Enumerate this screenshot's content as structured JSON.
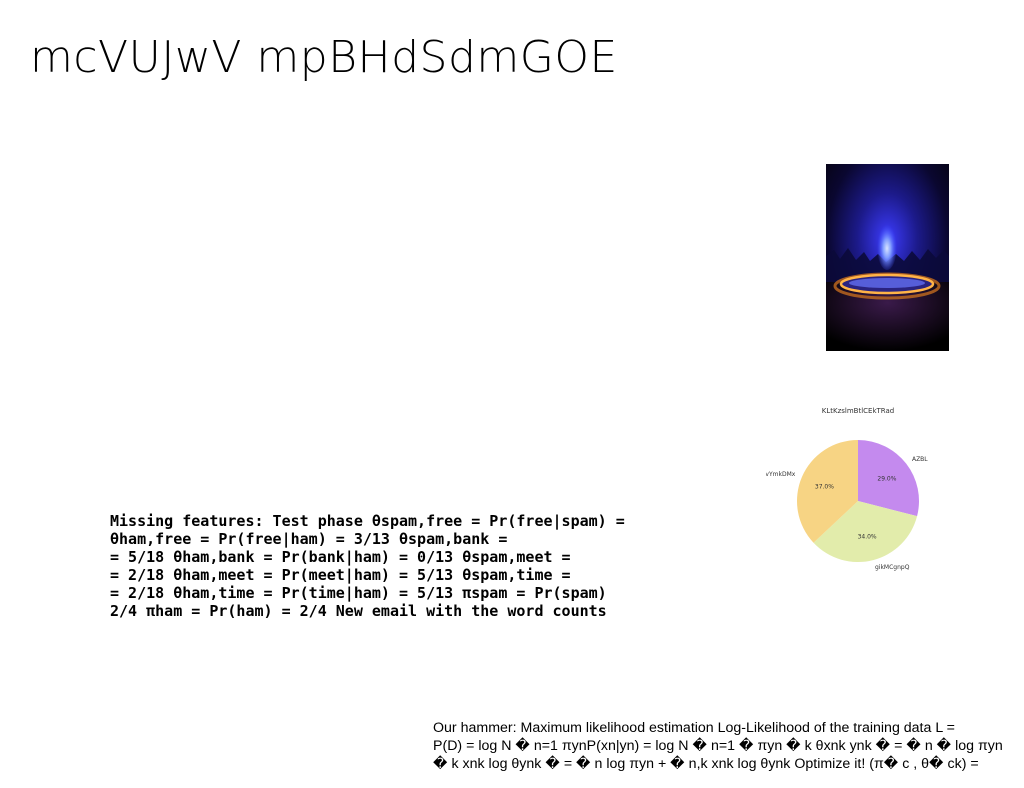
{
  "slide": {
    "title": "mcVUJwV mpBHdSdmGOE"
  },
  "missing_features": {
    "lines": [
      "Missing features: Test phase θspam,free = Pr(free|spam) =",
      "θham,free = Pr(free|ham) = 3/13 θspam,bank =",
      "= 5/18 θham,bank = Pr(bank|ham) = 0/13 θspam,meet =",
      "= 2/18 θham,meet = Pr(meet|ham) = 5/13 θspam,time =",
      "= 2/18 θham,time = Pr(time|ham) = 5/13 πspam = Pr(spam)",
      "2/4 πham = Pr(ham) = 2/4 New email with the word counts"
    ]
  },
  "hammer": {
    "lines": [
      "Our hammer: Maximum likelihood estimation Log-Likelihood of the training data L =",
      "P(D) = log N � n=1 πynP(xn|yn) = log N � n=1 � πyn � k θxnk ynk � = � n � log πyn",
      "� k xnk log θynk � = � n log πyn + � n,k xnk log θynk Optimize it! (π� c , θ� ck) ="
    ]
  },
  "photo": {
    "subject": "blue-glowing-portal",
    "colors": {
      "background": "#07041a",
      "glow": "#5a6bff",
      "ring": "#ffb347"
    }
  },
  "chart_data": {
    "type": "pie",
    "title": "KLtKzslmBtlCEkTRad",
    "start_angle_deg": 90,
    "direction": "clockwise",
    "slices": [
      {
        "label": "AZBL",
        "value": 29.0,
        "display": "29.0%",
        "color": "#c48aee"
      },
      {
        "label": "gikMCgnpQ",
        "value": 34.0,
        "display": "34.0%",
        "color": "#e2ecab"
      },
      {
        "label": "vYmkDMx",
        "value": 37.0,
        "display": "37.0%",
        "color": "#f7d484"
      }
    ]
  }
}
